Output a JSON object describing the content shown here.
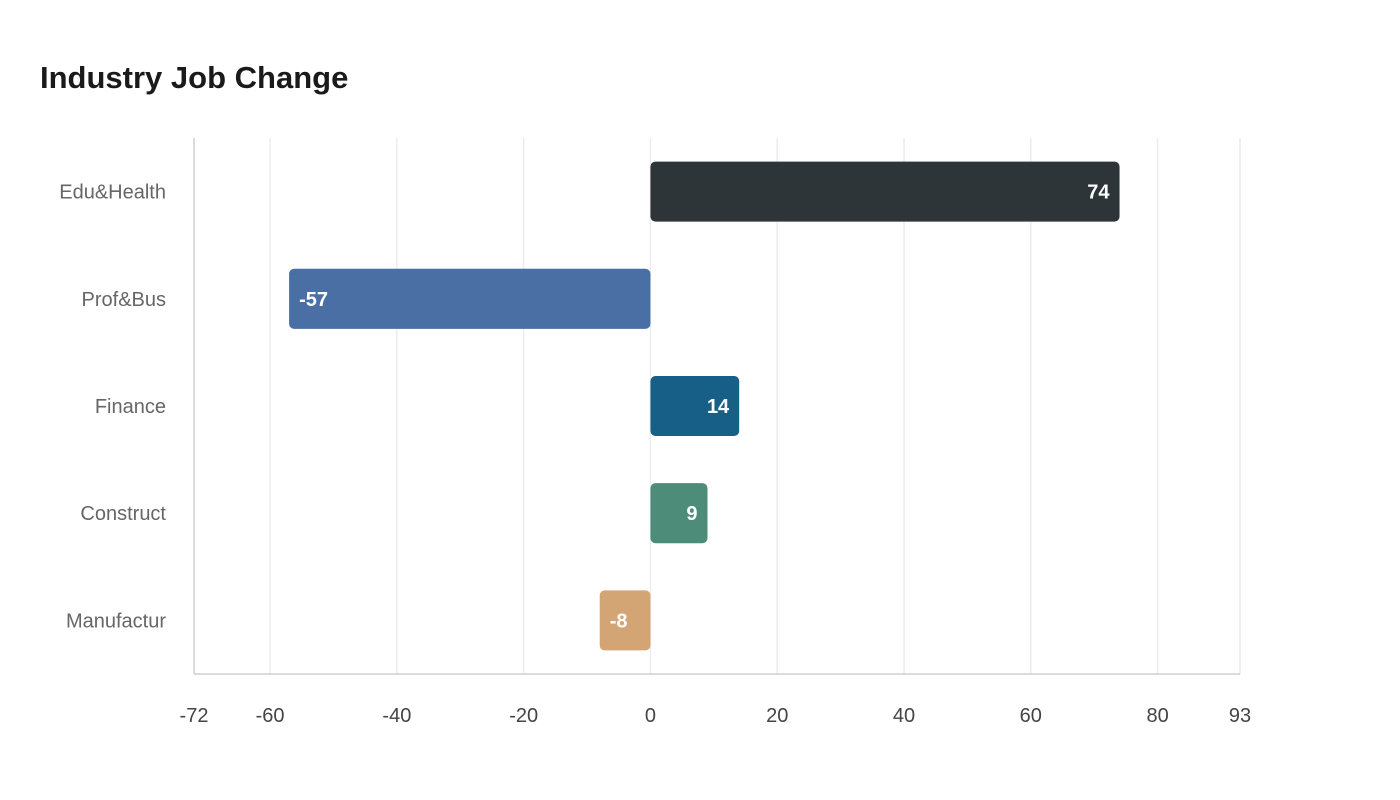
{
  "chart_data": {
    "type": "bar",
    "orientation": "horizontal",
    "title": "Industry Job Change",
    "xlabel": "",
    "ylabel": "",
    "categories": [
      "Edu&Health",
      "Prof&Bus",
      "Finance",
      "Construct",
      "Manufactur"
    ],
    "values": [
      74,
      -57,
      14,
      9,
      -8
    ],
    "colors": [
      "#2e3538",
      "#4a6fa5",
      "#185f87",
      "#4e8c7a",
      "#d4a574"
    ],
    "xlim": [
      -72,
      93
    ],
    "xticks": [
      -72,
      -60,
      -40,
      -20,
      0,
      20,
      40,
      60,
      80,
      93
    ],
    "grid": true,
    "legend": "none"
  }
}
